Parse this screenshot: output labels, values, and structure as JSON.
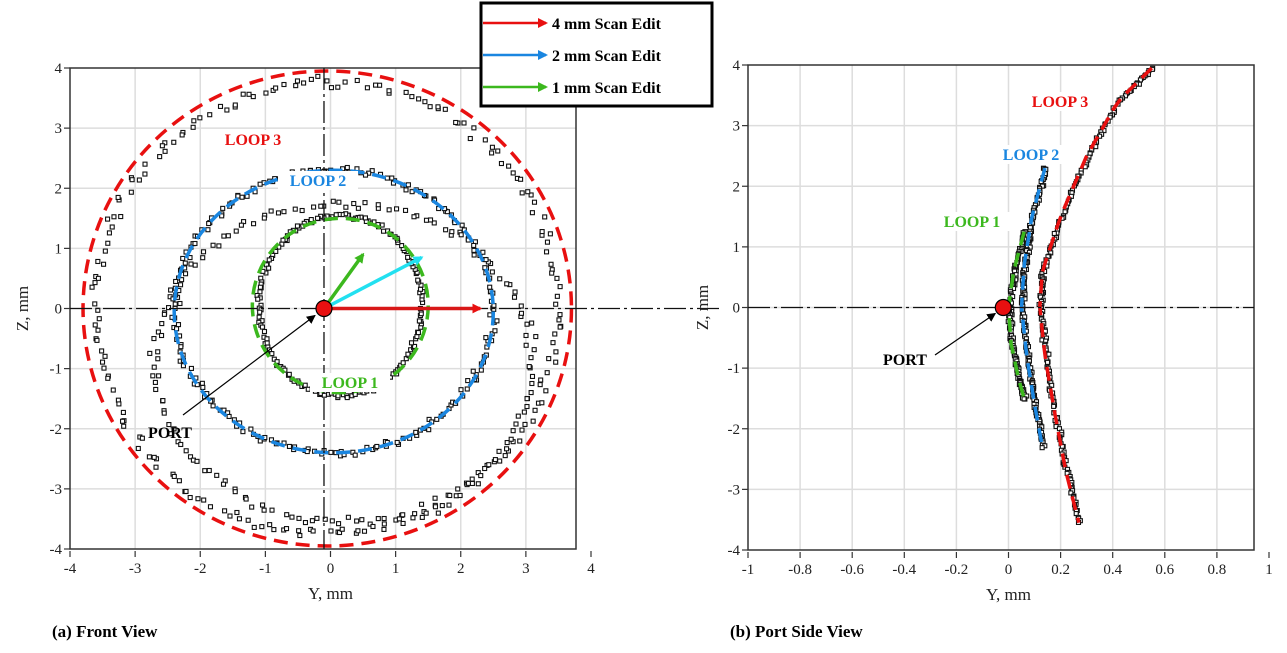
{
  "chart_data": [
    {
      "type": "scatter",
      "panel": "front",
      "caption": "(a) Front View",
      "xlabel": "Y, mm",
      "ylabel": "Z, mm",
      "xlim": [
        -4,
        4
      ],
      "ylim": [
        -4,
        4
      ],
      "xticks": [
        "-4",
        "-3",
        "-2",
        "-1",
        "0",
        "1",
        "2",
        "3",
        "4"
      ],
      "yticks": [
        "4",
        "3",
        "2",
        "1",
        "0",
        "-1",
        "-2",
        "-3",
        "-4"
      ],
      "grid": true,
      "port": {
        "label": "PORT",
        "y": -0.1,
        "z": 0.0
      },
      "loops": [
        {
          "name": "LOOP 1",
          "color": "#3cb81e",
          "center": [
            0.15,
            0.05
          ],
          "ry": 1.35,
          "rz": 1.45
        },
        {
          "name": "LOOP 2",
          "color": "#1a86e0",
          "center": [
            0.05,
            -0.05
          ],
          "ry": 2.45,
          "rz": 2.35
        },
        {
          "name": "LOOP 3",
          "color": "#e81010",
          "center": [
            -0.05,
            0.0
          ],
          "ry": 3.75,
          "rz": 3.95
        }
      ],
      "arrows": [
        {
          "name": "4 mm scan edit",
          "color": "#d81818",
          "from": [
            -0.1,
            0.0
          ],
          "to": [
            2.3,
            0.0
          ]
        },
        {
          "name": "2 mm scan edit",
          "color": "#22e0f0",
          "from": [
            -0.1,
            0.0
          ],
          "to": [
            1.4,
            0.85
          ]
        },
        {
          "name": "1 mm scan edit",
          "color": "#3cb81e",
          "from": [
            -0.1,
            0.0
          ],
          "to": [
            0.5,
            0.9
          ]
        }
      ],
      "scatter_rings": [
        {
          "center": [
            0.15,
            0.05
          ],
          "ry": 1.25,
          "rz": 1.5,
          "n": 180
        },
        {
          "center": [
            0.05,
            -0.05
          ],
          "ry": 2.45,
          "rz": 2.35,
          "n": 220
        },
        {
          "center": [
            0.2,
            -0.9
          ],
          "ry": 2.9,
          "rz": 2.65,
          "n": 160
        },
        {
          "center": [
            -0.05,
            0.0
          ],
          "ry": 3.55,
          "rz": 3.75,
          "n": 200
        }
      ]
    },
    {
      "type": "scatter",
      "panel": "side",
      "caption": "(b) Port Side View",
      "xlabel": "Y, mm",
      "ylabel": "Z, mm",
      "xlim": [
        -1,
        1
      ],
      "ylim": [
        -4,
        4
      ],
      "xticks": [
        "-1",
        "-0.8",
        "-0.6",
        "-0.4",
        "-0.2",
        "0",
        "0.2",
        "0.4",
        "0.6",
        "0.8",
        "1"
      ],
      "yticks": [
        "4",
        "3",
        "2",
        "1",
        "0",
        "-1",
        "-2",
        "-3",
        "-4"
      ],
      "grid": true,
      "port": {
        "label": "PORT",
        "x": -0.02,
        "z": 0.0
      },
      "loops": [
        {
          "name": "LOOP 1",
          "color": "#3cb81e",
          "points": [
            [
              0.06,
              1.25
            ],
            [
              0.02,
              0.6
            ],
            [
              0.0,
              0.0
            ],
            [
              0.01,
              -0.6
            ],
            [
              0.04,
              -1.2
            ],
            [
              0.06,
              -1.5
            ]
          ]
        },
        {
          "name": "LOOP 2",
          "color": "#1a86e0",
          "points": [
            [
              0.14,
              2.3
            ],
            [
              0.09,
              1.5
            ],
            [
              0.06,
              0.7
            ],
            [
              0.05,
              0.0
            ],
            [
              0.07,
              -0.8
            ],
            [
              0.1,
              -1.6
            ],
            [
              0.13,
              -2.3
            ]
          ]
        },
        {
          "name": "LOOP 3",
          "color": "#e81010",
          "points": [
            [
              0.55,
              3.95
            ],
            [
              0.42,
              3.4
            ],
            [
              0.3,
              2.5
            ],
            [
              0.2,
              1.5
            ],
            [
              0.13,
              0.6
            ],
            [
              0.12,
              0.0
            ],
            [
              0.14,
              -0.8
            ],
            [
              0.18,
              -1.8
            ],
            [
              0.22,
              -2.7
            ],
            [
              0.27,
              -3.55
            ]
          ]
        }
      ]
    }
  ],
  "legend": {
    "items": [
      {
        "label": "4 mm Scan Edit",
        "color": "#e81010"
      },
      {
        "label": "2 mm Scan Edit",
        "color": "#1a86e0"
      },
      {
        "label": "1 mm Scan Edit",
        "color": "#3cb81e"
      }
    ]
  }
}
